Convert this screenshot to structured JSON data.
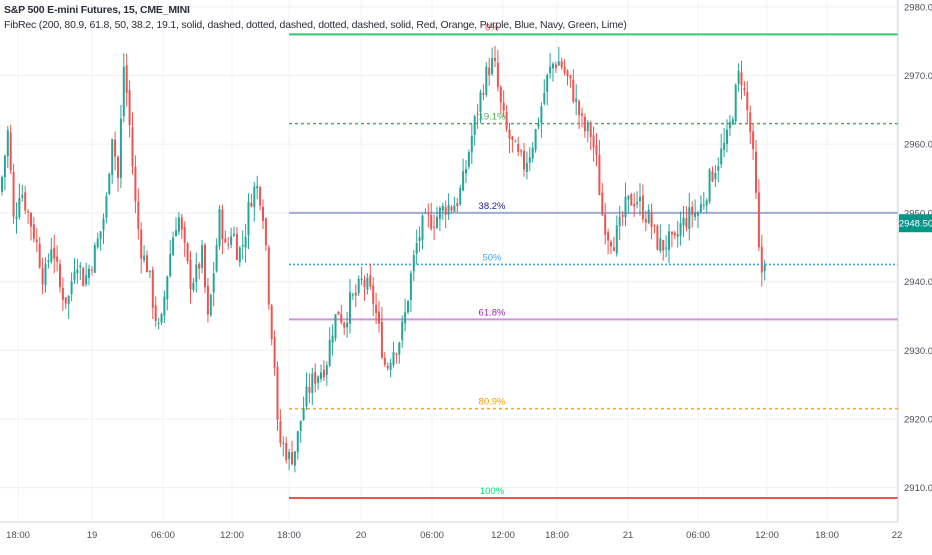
{
  "header": {
    "title": "S&P 500 E-mini Futures, 15, CME_MINI",
    "indicator": "FibRec (200, 80.9, 61.8, 50, 38.2, 19.1, solid, dashed, dotted, dashed, dotted, dashed, solid, Red, Orange, Purple, Blue, Navy, Green, Lime)"
  },
  "price_badge": {
    "label": "2948.50",
    "value": 2948.5,
    "color": "#009688"
  },
  "chart_data": {
    "type": "candlestick",
    "title": "S&P 500 E-mini Futures, 15, CME_MINI",
    "y_axis": {
      "min": 2905,
      "max": 2981,
      "position": "right",
      "ticks": [
        "2910.00",
        "2920.00",
        "2930.00",
        "2940.00",
        "2950.00",
        "2960.00",
        "2970.00",
        "2980.00"
      ],
      "tick_values": [
        2910,
        2920,
        2930,
        2940,
        2950,
        2960,
        2970,
        2980
      ]
    },
    "x_axis": {
      "labels": [
        "18:00",
        "19",
        "06:00",
        "12:00",
        "18:00",
        "20",
        "06:00",
        "12:00",
        "18:00",
        "21",
        "06:00",
        "12:00",
        "18:00",
        "22"
      ]
    },
    "grid": true,
    "colors": {
      "up": "#26a69a",
      "down": "#ef5350"
    },
    "fib_levels": [
      {
        "label": "0%",
        "price": 2976.0,
        "color": "#2ecc71",
        "style": "solid"
      },
      {
        "label": "19.1%",
        "price": 2963.0,
        "color": "#4caf50",
        "style": "dashed"
      },
      {
        "label": "38.2%",
        "price": 2950.0,
        "color": "#9fa8da",
        "style": "solid"
      },
      {
        "label": "50%",
        "price": 2942.5,
        "color": "#42a5f5",
        "style": "dotted"
      },
      {
        "label": "61.8%",
        "price": 2934.5,
        "color": "#ce93d8",
        "style": "solid"
      },
      {
        "label": "80.9%",
        "price": 2921.5,
        "color": "#ffa726",
        "style": "dashed"
      },
      {
        "label": "100%",
        "price": 2908.5,
        "color": "#ef5350",
        "style": "solid"
      }
    ],
    "fib_label_colors": [
      "#ef5350",
      "#4caf50",
      "#1a237e",
      "#42a5f5",
      "#9c27b0",
      "#ff9800",
      "#00e676"
    ],
    "path": [
      [
        0,
        2953
      ],
      [
        8,
        2962
      ],
      [
        14,
        2948
      ],
      [
        20,
        2954
      ],
      [
        28,
        2950
      ],
      [
        36,
        2946
      ],
      [
        44,
        2940
      ],
      [
        52,
        2946
      ],
      [
        60,
        2939
      ],
      [
        68,
        2937
      ],
      [
        76,
        2944
      ],
      [
        84,
        2940
      ],
      [
        92,
        2943
      ],
      [
        100,
        2947
      ],
      [
        106,
        2951
      ],
      [
        112,
        2962
      ],
      [
        118,
        2955
      ],
      [
        124,
        2972
      ],
      [
        130,
        2962
      ],
      [
        136,
        2950
      ],
      [
        142,
        2944
      ],
      [
        148,
        2942
      ],
      [
        154,
        2936
      ],
      [
        160,
        2932
      ],
      [
        166,
        2940
      ],
      [
        172,
        2946
      ],
      [
        178,
        2950
      ],
      [
        184,
        2945
      ],
      [
        190,
        2940
      ],
      [
        196,
        2941
      ],
      [
        202,
        2944
      ],
      [
        208,
        2934
      ],
      [
        214,
        2942
      ],
      [
        220,
        2950
      ],
      [
        226,
        2944
      ],
      [
        232,
        2948
      ],
      [
        238,
        2944
      ],
      [
        244,
        2946
      ],
      [
        250,
        2952
      ],
      [
        256,
        2954
      ],
      [
        262,
        2952
      ],
      [
        266,
        2945
      ],
      [
        270,
        2935
      ],
      [
        274,
        2930
      ],
      [
        278,
        2917
      ],
      [
        284,
        2916
      ],
      [
        290,
        2914
      ],
      [
        296,
        2916
      ],
      [
        302,
        2921
      ],
      [
        308,
        2924
      ],
      [
        314,
        2926
      ],
      [
        320,
        2927
      ],
      [
        326,
        2928
      ],
      [
        332,
        2933
      ],
      [
        338,
        2936
      ],
      [
        344,
        2934
      ],
      [
        350,
        2937
      ],
      [
        356,
        2938
      ],
      [
        362,
        2940
      ],
      [
        368,
        2939
      ],
      [
        374,
        2937
      ],
      [
        380,
        2932
      ],
      [
        386,
        2927
      ],
      [
        392,
        2930
      ],
      [
        398,
        2931
      ],
      [
        404,
        2934
      ],
      [
        410,
        2940
      ],
      [
        416,
        2945
      ],
      [
        422,
        2948
      ],
      [
        428,
        2949
      ],
      [
        434,
        2949
      ],
      [
        440,
        2950
      ],
      [
        446,
        2951
      ],
      [
        452,
        2951
      ],
      [
        458,
        2952
      ],
      [
        464,
        2955
      ],
      [
        470,
        2960
      ],
      [
        476,
        2964
      ],
      [
        482,
        2968
      ],
      [
        488,
        2971
      ],
      [
        494,
        2972
      ],
      [
        500,
        2966
      ],
      [
        506,
        2962
      ],
      [
        512,
        2960
      ],
      [
        518,
        2958
      ],
      [
        524,
        2957
      ],
      [
        530,
        2959
      ],
      [
        536,
        2962
      ],
      [
        542,
        2966
      ],
      [
        548,
        2970
      ],
      [
        554,
        2972
      ],
      [
        560,
        2972
      ],
      [
        566,
        2970
      ],
      [
        572,
        2968
      ],
      [
        578,
        2965
      ],
      [
        584,
        2962
      ],
      [
        590,
        2962
      ],
      [
        596,
        2958
      ],
      [
        602,
        2950
      ],
      [
        608,
        2947
      ],
      [
        614,
        2946
      ],
      [
        620,
        2948
      ],
      [
        626,
        2951
      ],
      [
        632,
        2952
      ],
      [
        638,
        2952
      ],
      [
        644,
        2950
      ],
      [
        650,
        2949
      ],
      [
        656,
        2946
      ],
      [
        662,
        2945
      ],
      [
        668,
        2946
      ],
      [
        674,
        2945
      ],
      [
        680,
        2948
      ],
      [
        686,
        2949
      ],
      [
        692,
        2950
      ],
      [
        698,
        2950
      ],
      [
        704,
        2952
      ],
      [
        710,
        2955
      ],
      [
        716,
        2957
      ],
      [
        722,
        2959
      ],
      [
        728,
        2961
      ],
      [
        734,
        2966
      ],
      [
        740,
        2971
      ],
      [
        746,
        2966
      ],
      [
        752,
        2960
      ],
      [
        756,
        2952
      ],
      [
        760,
        2941
      ],
      [
        764,
        2942
      ],
      [
        766,
        2947
      ],
      [
        768,
        2948.5
      ]
    ]
  }
}
